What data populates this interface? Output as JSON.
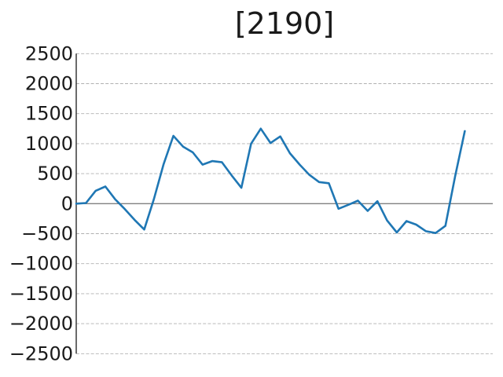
{
  "figure": {
    "background": "#ffffff"
  },
  "chart_data": {
    "type": "line",
    "title": "[2190]",
    "xlabel": "",
    "ylabel": "",
    "x": [
      0,
      1,
      2,
      3,
      4,
      5,
      6,
      7,
      8,
      9,
      10,
      11,
      12,
      13,
      14,
      15,
      16,
      17,
      18,
      19,
      20,
      21,
      22,
      23,
      24,
      25,
      26,
      27,
      28,
      29,
      30,
      31,
      32,
      33,
      34,
      35,
      36,
      37,
      38,
      39,
      40
    ],
    "values": [
      0,
      10,
      215,
      285,
      75,
      -90,
      -270,
      -430,
      80,
      660,
      1130,
      950,
      855,
      650,
      710,
      690,
      470,
      265,
      1000,
      1250,
      1010,
      1120,
      840,
      650,
      480,
      360,
      340,
      -85,
      -20,
      50,
      -120,
      40,
      -280,
      -480,
      -290,
      -350,
      -460,
      -490,
      -370,
      450,
      1210
    ],
    "ylim": [
      -2500,
      2500
    ],
    "yticks": [
      2500,
      2000,
      1500,
      1000,
      500,
      0,
      -500,
      -1000,
      -1500,
      -2000,
      -2500
    ],
    "ytick_labels": [
      "2500",
      "2000",
      "1500",
      "1000",
      "500",
      "0",
      "−500",
      "−1000",
      "−1500",
      "−2000",
      "−2500"
    ],
    "xticks": [],
    "legend": null,
    "grid": "horizontal-dashed",
    "zero_line": true,
    "colors": {
      "line": "#1f77b4",
      "grid": "#b0b0b0",
      "zero_line": "#808080",
      "spine": "#2b2b2b",
      "text": "#1a1a1a",
      "background": "#ffffff"
    }
  }
}
